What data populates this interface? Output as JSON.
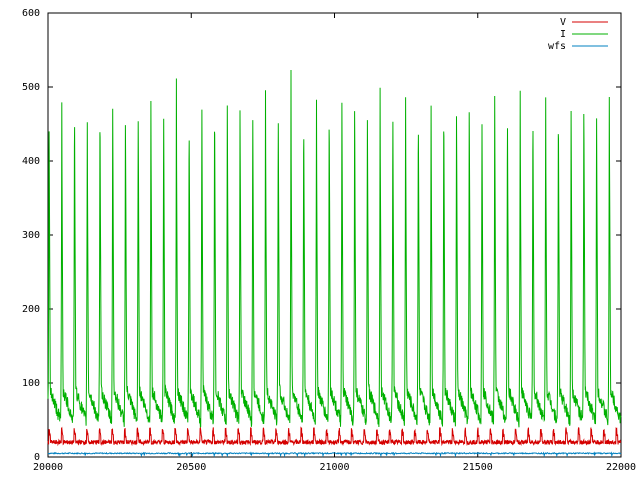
{
  "chart_data": {
    "type": "line",
    "title": "",
    "xlabel": "",
    "ylabel": "",
    "xlim": [
      20000,
      22000
    ],
    "ylim": [
      0,
      600
    ],
    "x_ticks": [
      20000,
      20500,
      21000,
      21500,
      22000
    ],
    "y_ticks": [
      0,
      100,
      200,
      300,
      400,
      500,
      600
    ],
    "x_tick_labels": [
      "20000",
      "20500",
      "21000",
      "21500",
      "22000"
    ],
    "y_tick_labels": [
      "0",
      "100",
      "200",
      "300",
      "400",
      "500",
      "600"
    ],
    "grid": false,
    "legend_position": "top-right",
    "series": [
      {
        "name": "V",
        "color": "#d40000",
        "description": "oscillating between ~15 and ~40, period ~44 samples",
        "baseline": 20,
        "peak": 40,
        "period": 44,
        "x_range": [
          20000,
          22000
        ]
      },
      {
        "name": "I",
        "color": "#00b000",
        "description": "periodic spikes",
        "peak_values": [
          482,
          478,
          490,
          460,
          485,
          488,
          480,
          490,
          487,
          488,
          490,
          482,
          488,
          498,
          490,
          486,
          484,
          488,
          490,
          492,
          486,
          490,
          488,
          492,
          489,
          487,
          490,
          492,
          482,
          486,
          488,
          490,
          485,
          491,
          488,
          490,
          487,
          492,
          488,
          490,
          486,
          492,
          494,
          484,
          490
        ],
        "trough": 40,
        "x_range": [
          20000,
          22000
        ]
      },
      {
        "name": "wfs",
        "color": "#0080c0",
        "description": "near constant ~5",
        "level": 5,
        "x_range": [
          20000,
          22000
        ]
      }
    ]
  }
}
